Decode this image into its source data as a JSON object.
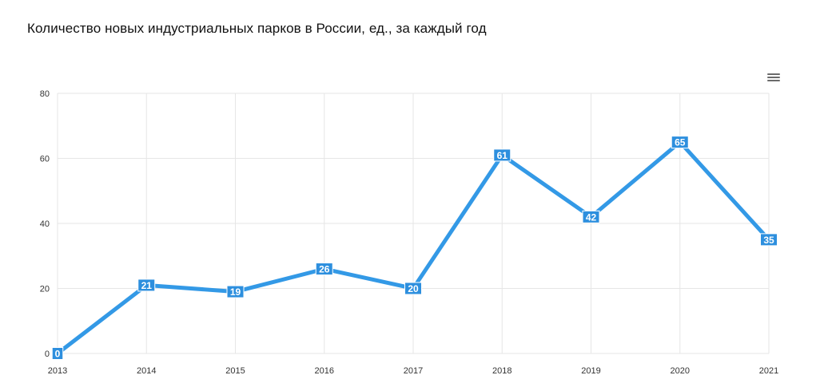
{
  "title": "Количество новых индустриальных парков в России, ед., за каждый год",
  "menu_icon": "hamburger-menu-icon",
  "colors": {
    "series": "#3399e6",
    "label_bg": "#2d8fde",
    "grid": "#e6e6e6"
  },
  "chart_data": {
    "type": "line",
    "title": "Количество новых индустриальных парков в России, ед., за каждый год",
    "x": [
      "2013",
      "2014",
      "2015",
      "2016",
      "2017",
      "2018",
      "2019",
      "2020",
      "2021"
    ],
    "series": [
      {
        "values": [
          0,
          21,
          19,
          26,
          20,
          61,
          42,
          65,
          35
        ]
      }
    ],
    "y_ticks": [
      "0",
      "20",
      "40",
      "60",
      "80"
    ],
    "ylim": [
      0,
      80
    ],
    "xlabel": "",
    "ylabel": "",
    "grid": true,
    "data_labels": true,
    "legend": "none"
  }
}
